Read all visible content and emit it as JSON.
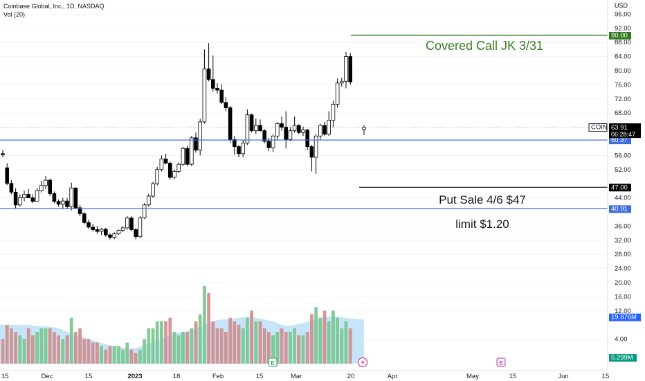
{
  "header": {
    "title": "Coinbase Global, Inc., 1D, NASDAQ",
    "volume_indicator": "Vol (20)",
    "currency": "USD"
  },
  "price_axis": {
    "ticks": [
      96,
      92,
      88,
      84,
      80,
      76,
      72,
      68,
      56,
      52,
      44,
      36,
      32,
      28,
      24,
      20,
      16,
      12,
      4
    ],
    "tick_labels": [
      "96.00",
      "92.00",
      "88.00",
      "84.00",
      "80.00",
      "76.00",
      "72.00",
      "68.00",
      "56.00",
      "52.00",
      "44.00",
      "36.00",
      "32.00",
      "28.00",
      "24.00",
      "20.00",
      "16.00",
      "12.00",
      "4.00"
    ]
  },
  "time_axis": {
    "labels": [
      "15",
      "Dec",
      "15",
      "2023",
      "18",
      "Feb",
      "15",
      "Mar",
      "20",
      "Apr",
      "May",
      "15",
      "Jun",
      "15"
    ]
  },
  "badges": {
    "ticker": "COIN",
    "last_price": "63.91",
    "countdown": "06:28:47",
    "vol_ma": "19.876M",
    "vol_last": "5.299M"
  },
  "annotations": {
    "covered_call": "Covered Call JK 3/31",
    "put_sale": "Put Sale 4/6 $47",
    "limit": "limit $1.20"
  },
  "levels": {
    "covered_call_strike": {
      "value": 90.0,
      "label": "90.00"
    },
    "support_upper": {
      "value": 60.37,
      "label": "60.37"
    },
    "put_strike": {
      "value": 47.0,
      "label": "47.00"
    },
    "support_lower": {
      "value": 40.91,
      "label": "40.91"
    }
  },
  "events": [
    "E",
    "E"
  ],
  "colors": {
    "up": "#ffffff",
    "down": "#000000",
    "vol_up": "#79c58c",
    "vol_down": "#cf8c8c",
    "vol_ma_fill": "#b3dcf7",
    "blue_line": "#3d6ce0",
    "green_line": "#2f7a1f",
    "annotation_green": "#3a7d22"
  },
  "chart_data": {
    "type": "candlestick",
    "price_range": [
      0,
      100
    ],
    "candles": [
      [
        56.5,
        57.5,
        55.5,
        56.2
      ],
      [
        52.5,
        53.8,
        47.6,
        48.1
      ],
      [
        48.1,
        49.0,
        45.0,
        45.6
      ],
      [
        45.6,
        46.7,
        41.1,
        42.0
      ],
      [
        42.0,
        45.0,
        41.5,
        44.0
      ],
      [
        44.0,
        46.0,
        43.0,
        45.0
      ],
      [
        45.0,
        46.5,
        44.0,
        44.0
      ],
      [
        44.0,
        45.0,
        42.5,
        43.0
      ],
      [
        43.0,
        46.8,
        43.0,
        46.0
      ],
      [
        46.0,
        48.8,
        45.5,
        47.5
      ],
      [
        47.5,
        50.2,
        46.5,
        49.0
      ],
      [
        49.0,
        49.5,
        44.5,
        45.2
      ],
      [
        45.2,
        45.8,
        42.5,
        43.0
      ],
      [
        43.0,
        43.5,
        41.5,
        42.2
      ],
      [
        42.2,
        44.0,
        41.0,
        43.1
      ],
      [
        43.1,
        44.0,
        41.0,
        41.5
      ],
      [
        41.5,
        48.3,
        40.5,
        46.8
      ],
      [
        46.8,
        47.0,
        40.8,
        41.2
      ],
      [
        41.2,
        42.0,
        38.8,
        39.5
      ],
      [
        39.5,
        40.0,
        36.5,
        37.0
      ],
      [
        37.0,
        37.8,
        35.2,
        35.7
      ],
      [
        35.7,
        36.6,
        34.5,
        35.0
      ],
      [
        35.0,
        36.0,
        33.8,
        34.5
      ],
      [
        34.5,
        35.5,
        33.5,
        35.1
      ],
      [
        35.1,
        35.5,
        33.0,
        33.5
      ],
      [
        33.5,
        34.0,
        32.2,
        32.8
      ],
      [
        32.8,
        34.2,
        32.3,
        33.8
      ],
      [
        33.8,
        35.0,
        33.5,
        34.8
      ],
      [
        34.8,
        36.0,
        34.3,
        35.5
      ],
      [
        35.5,
        38.8,
        35.0,
        38.3
      ],
      [
        38.3,
        38.8,
        34.5,
        35.0
      ],
      [
        35.0,
        35.5,
        32.2,
        33.0
      ],
      [
        33.0,
        38.8,
        32.6,
        38.3
      ],
      [
        38.3,
        42.5,
        38.0,
        42.0
      ],
      [
        42.0,
        45.2,
        41.5,
        44.5
      ],
      [
        44.5,
        48.5,
        44.0,
        48.0
      ],
      [
        48.0,
        52.8,
        47.5,
        52.0
      ],
      [
        52.0,
        56.0,
        51.5,
        55.0
      ],
      [
        55.0,
        56.5,
        53.5,
        53.8
      ],
      [
        53.8,
        54.2,
        49.2,
        49.8
      ],
      [
        49.8,
        52.0,
        49.3,
        51.5
      ],
      [
        51.5,
        54.0,
        51.0,
        53.5
      ],
      [
        53.5,
        58.5,
        53.0,
        58.0
      ],
      [
        58.0,
        58.8,
        53.0,
        53.5
      ],
      [
        53.5,
        61.5,
        53.0,
        61.0
      ],
      [
        61.0,
        62.5,
        56.8,
        57.5
      ],
      [
        57.5,
        66.3,
        56.0,
        65.5
      ],
      [
        65.5,
        86.0,
        65.0,
        80.5
      ],
      [
        80.5,
        87.8,
        77.0,
        77.5
      ],
      [
        77.5,
        84.3,
        74.0,
        75.0
      ],
      [
        75.0,
        76.5,
        73.5,
        74.5
      ],
      [
        74.5,
        76.2,
        70.5,
        71.0
      ],
      [
        71.0,
        72.5,
        68.5,
        69.5
      ],
      [
        69.5,
        70.0,
        59.5,
        60.5
      ],
      [
        60.5,
        61.5,
        56.2,
        58.5
      ],
      [
        58.5,
        59.0,
        55.5,
        56.5
      ],
      [
        56.5,
        60.5,
        55.5,
        59.5
      ],
      [
        59.5,
        69.0,
        59.0,
        67.5
      ],
      [
        67.5,
        67.8,
        62.5,
        63.0
      ],
      [
        63.0,
        66.5,
        62.0,
        64.5
      ],
      [
        64.5,
        66.2,
        62.8,
        63.0
      ],
      [
        63.0,
        63.5,
        59.5,
        60.0
      ],
      [
        60.0,
        61.0,
        57.2,
        58.2
      ],
      [
        58.2,
        62.0,
        57.0,
        61.5
      ],
      [
        61.5,
        65.5,
        60.5,
        65.0
      ],
      [
        65.0,
        67.0,
        63.0,
        64.0
      ],
      [
        64.0,
        68.5,
        58.0,
        60.5
      ],
      [
        60.5,
        64.0,
        60.0,
        63.0
      ],
      [
        63.0,
        67.0,
        62.5,
        64.5
      ],
      [
        64.5,
        64.8,
        62.0,
        62.5
      ],
      [
        62.5,
        64.2,
        61.5,
        63.2
      ],
      [
        63.2,
        63.5,
        57.5,
        58.5
      ],
      [
        58.5,
        59.0,
        51.5,
        55.5
      ],
      [
        55.5,
        62.0,
        50.8,
        61.5
      ],
      [
        61.5,
        65.0,
        60.5,
        64.5
      ],
      [
        64.5,
        65.5,
        61.5,
        62.0
      ],
      [
        62.0,
        68.5,
        61.5,
        66.0
      ],
      [
        66.0,
        71.5,
        64.0,
        70.5
      ],
      [
        70.5,
        77.8,
        69.5,
        76.5
      ],
      [
        76.5,
        78.0,
        75.5,
        77.0
      ],
      [
        77.0,
        85.3,
        75.0,
        84.0
      ],
      [
        84.0,
        85.0,
        76.0,
        76.8
      ],
      [
        63.3,
        64.5,
        61.8,
        63.9
      ]
    ],
    "volume": [
      7,
      11,
      10,
      9,
      8,
      7,
      10,
      8,
      9,
      10,
      10,
      10,
      9,
      8,
      7,
      8,
      13,
      9,
      10,
      7,
      7,
      6,
      6,
      5,
      4,
      5,
      5,
      5,
      4,
      6,
      4,
      3,
      4,
      7,
      10,
      10,
      12,
      12,
      12,
      13,
      9,
      8,
      9,
      9,
      10,
      12,
      14,
      22,
      20,
      12,
      10,
      10,
      9,
      13,
      12,
      11,
      10,
      13,
      15,
      12,
      12,
      10,
      9,
      8,
      9,
      10,
      9,
      9,
      10,
      8,
      8,
      9,
      14,
      16,
      13,
      15,
      12,
      15,
      13,
      10,
      12,
      10,
      1
    ],
    "vol_ma_20": [
      11,
      11,
      11,
      11,
      11,
      11,
      11,
      10.8,
      10.6,
      10.6,
      10.6,
      10.5,
      10.3,
      10,
      9.5,
      9,
      8.5,
      8.2,
      7.8,
      7.4,
      7,
      6.6,
      6.2,
      5.8,
      5.5,
      5.2,
      5,
      4.8,
      4.5,
      4.3,
      4.3,
      4.5,
      4.8,
      5.2,
      5.6,
      6,
      6.5,
      7,
      7.5,
      8,
      8.5,
      8.8,
      9,
      9.2,
      9.5,
      10,
      10.5,
      11,
      11.5,
      12,
      12.3,
      12.5,
      12.5,
      12.6,
      12.8,
      13,
      13.2,
      13.3,
      13.2,
      13,
      12.8,
      12.5,
      12.2,
      12,
      11.5,
      11,
      10.8,
      10.8,
      11,
      11.2,
      11.5,
      11.8,
      12.2,
      12.6,
      13,
      13.2,
      13.3,
      13.4,
      13.3,
      13.2,
      13,
      12.8,
      12.5
    ]
  }
}
